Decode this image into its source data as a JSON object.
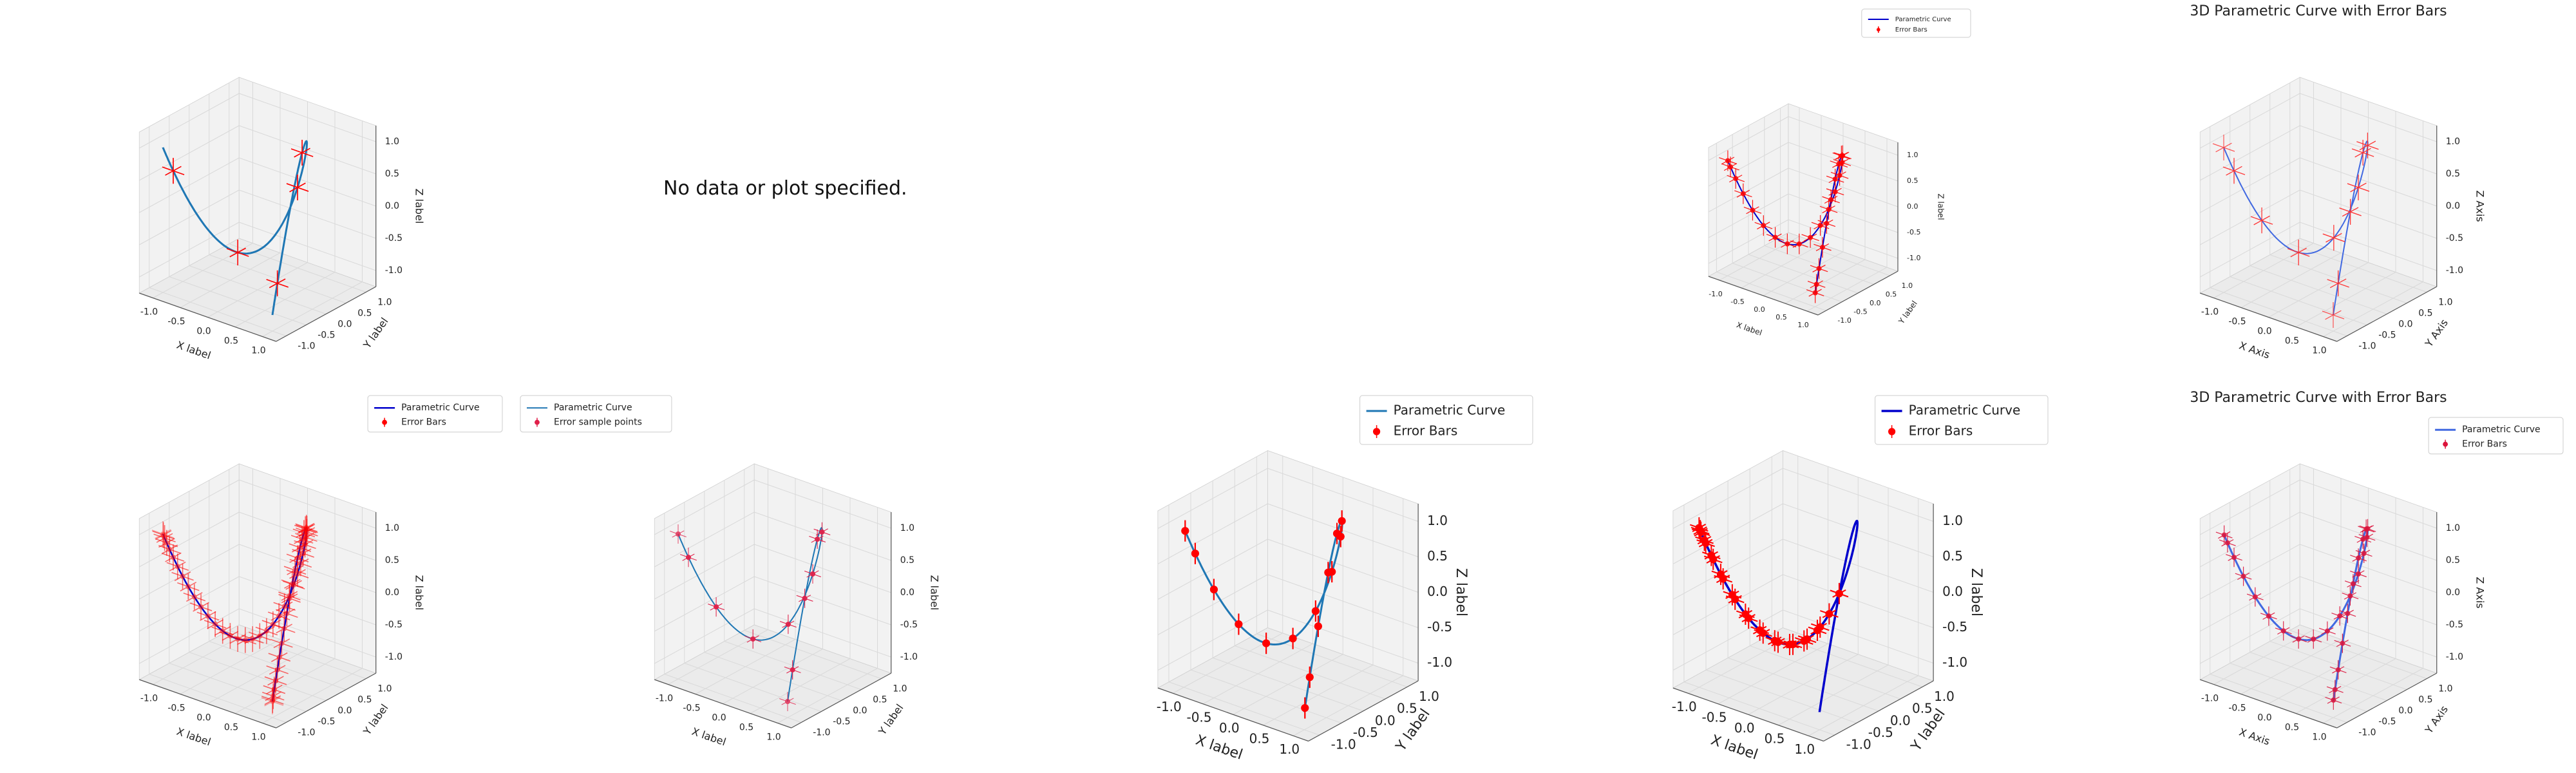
{
  "colors": {
    "pane": "#ebebeb",
    "pane_side": "#f2f2f2",
    "grid": "#d9d9d9",
    "axis": "#555555",
    "text": "#222222"
  },
  "panels": [
    {
      "id": "p0",
      "type": "chart",
      "title": "",
      "xlabel": "X label",
      "ylabel": "Y label",
      "zlabel": "Z label",
      "legend": [],
      "curve_color": "#1f77b4",
      "curve_width": 3,
      "error": {
        "points": 10,
        "xerr": 0.2,
        "yerr": 0.2,
        "zerr": 0.2,
        "color": "#ff0000",
        "marker": false,
        "linewidth": 1.5,
        "alpha": 0.9
      }
    },
    {
      "id": "p1",
      "type": "message",
      "text": "No data or plot specified."
    },
    {
      "id": "p2",
      "type": "empty"
    },
    {
      "id": "p3",
      "type": "chart",
      "title": "",
      "xlabel": "X label",
      "ylabel": "Y label",
      "zlabel": "Z label",
      "legend": [
        "Parametric Curve",
        "Error Bars"
      ],
      "legend_pos": "upper-right",
      "small": true,
      "curve_color": "#0000cc",
      "curve_width": 2,
      "error": {
        "points": 25,
        "xerr": 0.2,
        "yerr": 0.2,
        "zerr": 0.2,
        "color": "#ff0000",
        "marker": true,
        "linewidth": 1.2,
        "alpha": 0.9
      }
    },
    {
      "id": "p4",
      "type": "chart",
      "title": "3D Parametric Curve with Error Bars",
      "xlabel": "X Axis",
      "ylabel": "Y Axis",
      "zlabel": "Z Axis",
      "legend": [],
      "curve_color": "#4169e1",
      "curve_width": 2,
      "error": {
        "points": 20,
        "xerr": 0.2,
        "yerr": 0.2,
        "zerr": 0.2,
        "color": "#ff3030",
        "marker": false,
        "linewidth": 1.2,
        "alpha": 0.8
      }
    },
    {
      "id": "p5",
      "type": "chart",
      "title": "",
      "xlabel": "X label",
      "ylabel": "Y label",
      "zlabel": "Z label",
      "legend": [
        "Parametric Curve",
        "Error Bars"
      ],
      "legend_pos": "upper-right",
      "curve_color": "#0000cc",
      "curve_width": 2.5,
      "error": {
        "points": 100,
        "xerr": 0.2,
        "yerr": 0.2,
        "zerr": 0.2,
        "color": "#ff0000",
        "marker": true,
        "linewidth": 1.5,
        "alpha": 0.35
      }
    },
    {
      "id": "p6",
      "type": "chart",
      "title": "",
      "xlabel": "X label",
      "ylabel": "Y label",
      "zlabel": "Z label",
      "legend": [
        "Parametric Curve",
        "Error sample points"
      ],
      "legend_pos": "upper-left",
      "curve_color": "#1f77b4",
      "curve_width": 2,
      "error": {
        "points": 20,
        "xerr": 0.15,
        "yerr": 0.15,
        "zerr": 0.15,
        "color": "#e0204a",
        "marker": true,
        "linewidth": 1,
        "alpha": 0.8
      }
    },
    {
      "id": "p7",
      "type": "chart",
      "title": "",
      "xlabel": "X label",
      "ylabel": "Y label",
      "zlabel": "Z label",
      "legend": [
        "Parametric Curve",
        "Error Bars"
      ],
      "legend_pos": "upper-right",
      "large": true,
      "curve_color": "#1f77b4",
      "curve_width": 3,
      "error": {
        "points": 30,
        "xerr": 0,
        "yerr": 0,
        "zerr": 0.15,
        "color": "#ff0000",
        "marker": true,
        "linewidth": 2,
        "alpha": 1
      }
    },
    {
      "id": "p8",
      "type": "chart",
      "title": "",
      "xlabel": "X label",
      "ylabel": "Y label",
      "zlabel": "Z label",
      "legend": [
        "Parametric Curve",
        "Error Bars"
      ],
      "legend_pos": "upper-right",
      "large": true,
      "curve_color": "#0000cc",
      "curve_width": 3.5,
      "error": {
        "points": 25,
        "from": 0.55,
        "xerr": 0.15,
        "yerr": 0.15,
        "zerr": 0.15,
        "color": "#ff0000",
        "marker": true,
        "linewidth": 2,
        "alpha": 1
      }
    },
    {
      "id": "p9",
      "type": "chart",
      "title": "3D Parametric Curve with Error Bars",
      "xlabel": "X Axis",
      "ylabel": "Y Axis",
      "zlabel": "Z Axis",
      "legend": [
        "Parametric Curve",
        "Error Bars"
      ],
      "legend_pos": "upper-right",
      "curve_color": "#4169e1",
      "curve_width": 3,
      "error": {
        "points": 25,
        "xerr": 0.15,
        "yerr": 0.15,
        "zerr": 0.15,
        "color": "#dc143c",
        "marker": true,
        "linewidth": 1.2,
        "alpha": 0.9
      }
    }
  ],
  "chart_data": {
    "type": "line3d",
    "curve": "x = sin(t), y = cos(2t), z = sin(3t), t in [0, 2π]",
    "xlim": [
      -1.25,
      1.25
    ],
    "ylim": [
      -1.25,
      1.25
    ],
    "zlim": [
      -1.25,
      1.25
    ],
    "xticks": [
      "-1.0",
      "-0.5",
      "0.0",
      "0.5",
      "1.0"
    ],
    "yticks": [
      "-1.0",
      "-0.5",
      "0.0",
      "0.5",
      "1.0"
    ],
    "zticks": [
      "-1.0",
      "-0.5",
      "0.0",
      "0.5",
      "1.0"
    ],
    "grid": true
  }
}
